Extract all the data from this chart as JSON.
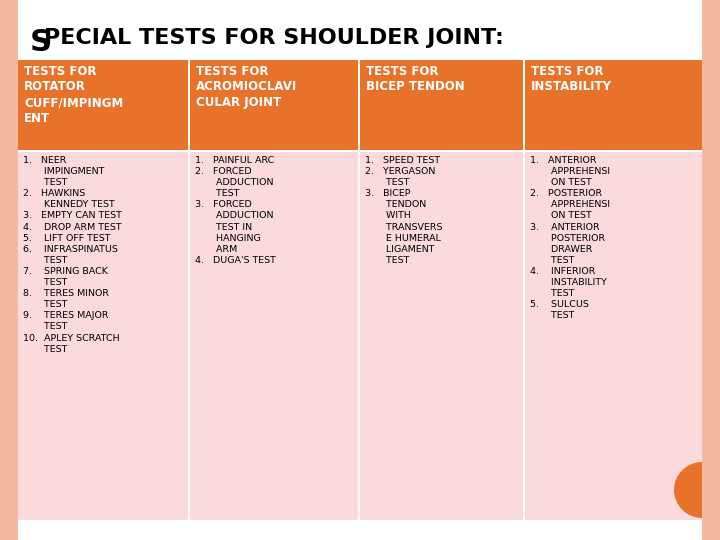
{
  "title_prefix": "S",
  "title_rest": "PECIAL TESTS FOR SHOULDER JOINT:",
  "page_bg": "#FAEAE4",
  "border_left_color": "#F0A080",
  "header_bg": "#E8722A",
  "header_text_color": "#FFFFFF",
  "cell_bg": "#FADADD",
  "cell_text_color": "#000000",
  "table_bg": "#FFFFFF",
  "headers": [
    "TESTS FOR\nROTATOR\nCUFF/IMPINGM\nENT",
    "TESTS FOR\nACROMIOCLAVI\nCULAR JOINT",
    "TESTS FOR\nBICEP TENDON",
    "TESTS FOR\nINSTABILITY"
  ],
  "col1_content": "1.   NEER\n       IMPINGMENT\n       TEST\n2.   HAWKINS\n       KENNEDY TEST\n3.   EMPTY CAN TEST\n4.    DROP ARM TEST\n5.    LIFT OFF TEST\n6.    INFRASPINATUS\n       TEST\n7.    SPRING BACK\n       TEST\n8.    TERES MINOR\n       TEST\n9.    TERES MAJOR\n       TEST\n10.  APLEY SCRATCH\n       TEST",
  "col2_content": "1.   PAINFUL ARC\n2.   FORCED\n       ADDUCTION\n       TEST\n3.   FORCED\n       ADDUCTION\n       TEST IN\n       HANGING\n       ARM\n4.   DUGA'S TEST",
  "col3_content": "1.   SPEED TEST\n2.   YERGASON\n       TEST\n3.   BICEP\n       TENDON\n       WITH\n       TRANSVERS\n       E HUMERAL\n       LIGAMENT\n       TEST",
  "col4_content": "1.   ANTERIOR\n       APPREHENSI\n       ON TEST\n2.   POSTERIOR\n       APPREHENSI\n       ON TEST\n3.    ANTERIOR\n       POSTERIOR\n       DRAWER\n       TEST\n4.    INFERIOR\n       INSTABILITY\n       TEST\n5.    SULCUS\n       TEST"
}
